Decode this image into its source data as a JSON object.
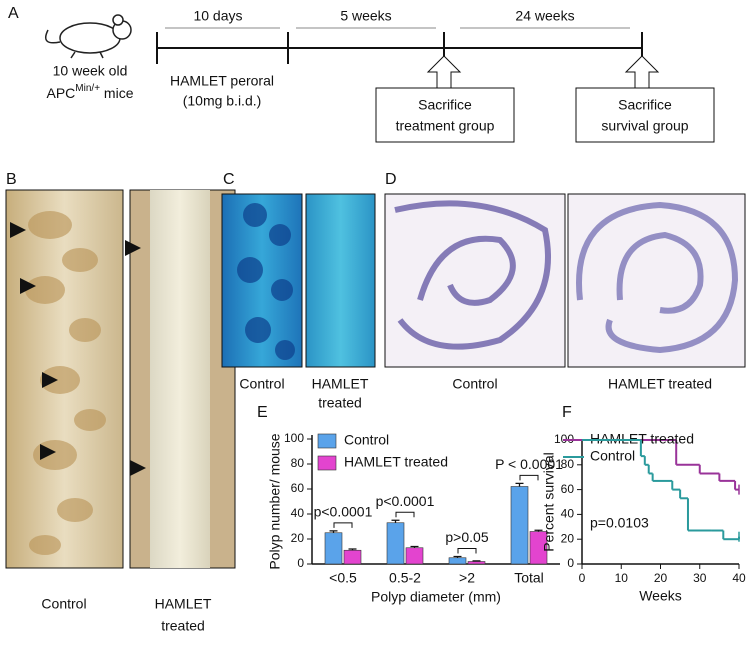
{
  "panels": {
    "a": "A",
    "b": "B",
    "c": "C",
    "d": "D",
    "e": "E",
    "f": "F"
  },
  "timeline": {
    "mouse_line1": "10 week old",
    "mouse_line2": {
      "base": "APC",
      "sup": "Min/+",
      "rest": " mice"
    },
    "durations": [
      "10 days",
      "5 weeks",
      "24 weeks"
    ],
    "treatment": [
      "HAMLET peroral",
      "(10mg b.i.d.)"
    ],
    "box1": [
      "Sacrifice",
      "treatment group"
    ],
    "box2": [
      "Sacrifice",
      "survival group"
    ]
  },
  "images": {
    "b": [
      "Control",
      "HAMLET",
      "treated"
    ],
    "c": [
      "Control",
      "HAMLET",
      "treated"
    ],
    "d": [
      "Control",
      "HAMLET treated"
    ]
  },
  "chart_data": [
    {
      "type": "bar",
      "ylabel": "Polyp number/ mouse",
      "xlabel": "Polyp diameter (mm)",
      "categories": [
        "<0.5",
        "0.5-2",
        ">2",
        "Total"
      ],
      "series": [
        {
          "name": "Control",
          "color": "#5aa3ea",
          "values": [
            25,
            33,
            5,
            62
          ],
          "errors": [
            1.5,
            2,
            1,
            2.5
          ]
        },
        {
          "name": "HAMLET treated",
          "color": "#e344cf",
          "values": [
            11,
            13,
            2,
            26
          ],
          "errors": [
            1,
            1,
            0.5,
            1
          ]
        }
      ],
      "annotations": [
        "p<0.0001",
        "p<0.0001",
        "p>0.05",
        "P < 0.0001"
      ],
      "ylim": [
        0,
        100
      ],
      "yticks": [
        0,
        20,
        40,
        60,
        80,
        100
      ]
    },
    {
      "type": "survival",
      "ylabel": "Percent survival",
      "xlabel": "Weeks",
      "series": [
        {
          "name": "HAMLET treated",
          "color": "#993399",
          "x": [
            0,
            24,
            30,
            35,
            39,
            40
          ],
          "values": [
            100,
            80,
            73,
            67,
            60,
            60
          ]
        },
        {
          "name": "Control",
          "color": "#2a9a9c",
          "x": [
            0,
            15,
            16,
            17,
            18,
            20,
            23,
            25,
            27,
            33,
            36,
            40
          ],
          "values": [
            100,
            87,
            80,
            73,
            67,
            67,
            60,
            53,
            27,
            27,
            20,
            22
          ]
        }
      ],
      "annotation": "p=0.0103",
      "xlim": [
        0,
        40
      ],
      "xticks": [
        0,
        10,
        20,
        30,
        40
      ],
      "ylim": [
        0,
        100
      ],
      "yticks": [
        0,
        20,
        40,
        60,
        80,
        100
      ]
    }
  ]
}
